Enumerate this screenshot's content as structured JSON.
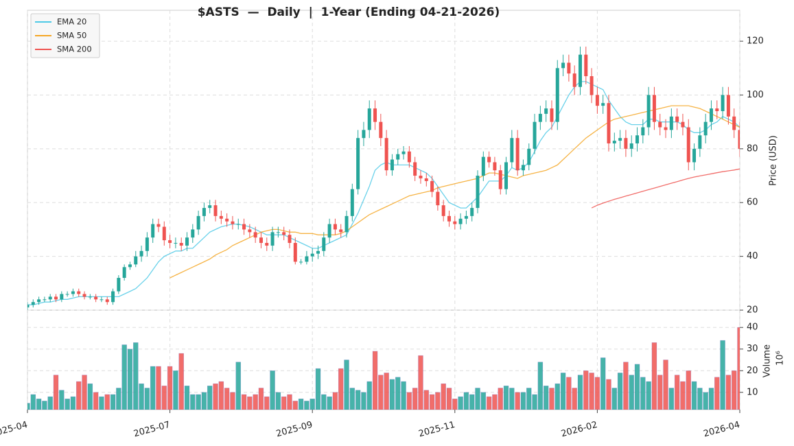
{
  "chart_data": {
    "type": "candlestick",
    "title": "$ASTS  —  Daily  |  1-Year (Ending 04-21-2026)",
    "ylabel": "Price (USD)",
    "y2label": "Volume",
    "y2unit": "10⁶",
    "xlim": [
      0,
      125
    ],
    "xticks": [
      {
        "value": 0,
        "label": "2025-04"
      },
      {
        "value": 25,
        "label": "2025-07"
      },
      {
        "value": 50,
        "label": "2025-09"
      },
      {
        "value": 75,
        "label": "2025-11"
      },
      {
        "value": 100,
        "label": "2026-02"
      },
      {
        "value": 125,
        "label": "2026-04"
      }
    ],
    "ylim": [
      20,
      131.5
    ],
    "yticks": [
      20,
      40,
      60,
      80,
      100,
      120
    ],
    "y2lim": [
      2,
      48
    ],
    "y2ticks": [
      10,
      20,
      30,
      40
    ],
    "grid": true,
    "legend": "upper left",
    "up_color": "#26a69a",
    "down_color": "#ef5350",
    "open": [
      21,
      22,
      23,
      24,
      24,
      25,
      24,
      26,
      26,
      27,
      26,
      25,
      25,
      24,
      24,
      23,
      27,
      32,
      36,
      37,
      40,
      42,
      47,
      52,
      51,
      46,
      45,
      45,
      44,
      47,
      50,
      55,
      58,
      59,
      55,
      54,
      53,
      52,
      52,
      50,
      49,
      47,
      45,
      44,
      49,
      49,
      48,
      45,
      38,
      38,
      40,
      41,
      42,
      47,
      52,
      50,
      49,
      55,
      65,
      84,
      87,
      95,
      90,
      84,
      72,
      76,
      78,
      79,
      75,
      70,
      69,
      68,
      64,
      59,
      55,
      53,
      52,
      54,
      55,
      58,
      70,
      77,
      75,
      72,
      65,
      75,
      84,
      72,
      74,
      80,
      90,
      93,
      95,
      90,
      110,
      112,
      108,
      103,
      115,
      107,
      100,
      96,
      97,
      82,
      83,
      84,
      80,
      82,
      85,
      88,
      100,
      90,
      88,
      87,
      92,
      90,
      88,
      75,
      80,
      85,
      90,
      95,
      94,
      100,
      92,
      87
    ],
    "high": [
      23,
      24,
      25,
      25,
      26,
      26,
      27,
      27,
      28,
      28,
      27,
      26,
      26,
      25,
      25,
      28,
      33,
      37,
      38,
      42,
      44,
      49,
      54,
      54,
      53,
      48,
      47,
      47,
      49,
      52,
      57,
      60,
      61,
      61,
      57,
      56,
      55,
      54,
      54,
      52,
      51,
      49,
      47,
      51,
      51,
      51,
      50,
      47,
      39,
      42,
      43,
      44,
      49,
      54,
      54,
      52,
      57,
      67,
      87,
      90,
      98,
      98,
      93,
      87,
      78,
      80,
      81,
      81,
      77,
      72,
      71,
      70,
      66,
      61,
      57,
      55,
      56,
      57,
      60,
      72,
      79,
      79,
      77,
      74,
      77,
      87,
      87,
      76,
      82,
      93,
      96,
      98,
      98,
      113,
      115,
      115,
      111,
      118,
      118,
      110,
      103,
      100,
      100,
      86,
      87,
      87,
      85,
      88,
      91,
      103,
      103,
      93,
      91,
      95,
      95,
      93,
      91,
      82,
      88,
      93,
      98,
      98,
      103,
      103,
      95,
      90
    ],
    "low": [
      20,
      21,
      22,
      23,
      23,
      23,
      23,
      25,
      25,
      25,
      24,
      24,
      23,
      23,
      22,
      22,
      26,
      31,
      35,
      36,
      38,
      40,
      45,
      49,
      44,
      43,
      43,
      42,
      42,
      45,
      48,
      53,
      56,
      53,
      52,
      51,
      50,
      50,
      48,
      47,
      45,
      43,
      42,
      42,
      47,
      46,
      43,
      37,
      37,
      37,
      38,
      39,
      40,
      45,
      48,
      47,
      47,
      53,
      63,
      81,
      84,
      87,
      81,
      70,
      70,
      74,
      76,
      73,
      68,
      67,
      66,
      62,
      57,
      53,
      51,
      50,
      50,
      52,
      53,
      56,
      68,
      73,
      70,
      63,
      63,
      73,
      70,
      70,
      72,
      78,
      87,
      90,
      87,
      87,
      107,
      105,
      100,
      100,
      104,
      97,
      93,
      93,
      79,
      79,
      80,
      77,
      77,
      79,
      82,
      85,
      87,
      85,
      84,
      84,
      87,
      85,
      72,
      72,
      77,
      82,
      87,
      91,
      91,
      89,
      84,
      77
    ],
    "close": [
      22,
      23,
      24,
      24,
      25,
      24,
      26,
      26,
      27,
      26,
      25,
      25,
      24,
      24,
      23,
      27,
      32,
      36,
      37,
      40,
      42,
      47,
      52,
      51,
      46,
      45,
      45,
      44,
      47,
      50,
      55,
      58,
      59,
      55,
      54,
      53,
      52,
      52,
      50,
      49,
      47,
      45,
      44,
      49,
      49,
      48,
      45,
      38,
      38,
      40,
      41,
      42,
      47,
      52,
      50,
      49,
      55,
      65,
      84,
      87,
      95,
      90,
      84,
      72,
      76,
      78,
      79,
      75,
      70,
      69,
      68,
      64,
      59,
      55,
      53,
      52,
      54,
      55,
      58,
      70,
      77,
      75,
      72,
      65,
      75,
      84,
      72,
      74,
      80,
      90,
      93,
      95,
      90,
      110,
      112,
      108,
      103,
      115,
      107,
      100,
      96,
      97,
      82,
      83,
      84,
      80,
      82,
      85,
      88,
      100,
      90,
      88,
      87,
      92,
      90,
      88,
      75,
      80,
      85,
      90,
      95,
      94,
      100,
      92,
      87,
      80
    ],
    "volume": [
      5,
      9,
      7,
      6,
      8,
      18,
      11,
      7,
      8,
      15,
      18,
      14,
      10,
      8,
      9,
      9,
      12,
      32,
      30,
      33,
      14,
      12,
      22,
      22,
      13,
      22,
      20,
      28,
      13,
      9,
      9,
      10,
      13,
      14,
      15,
      12,
      10,
      24,
      9,
      8,
      9,
      12,
      8,
      20,
      10,
      8,
      9,
      6,
      7,
      6,
      7,
      21,
      9,
      8,
      10,
      21,
      25,
      12,
      11,
      10,
      15,
      29,
      18,
      19,
      16,
      17,
      15,
      10,
      12,
      27,
      11,
      9,
      10,
      14,
      12,
      7,
      8,
      10,
      9,
      12,
      10,
      8,
      9,
      12,
      13,
      12,
      10,
      10,
      12,
      9,
      24,
      13,
      12,
      14,
      19,
      17,
      12,
      18,
      20,
      19,
      17,
      26,
      16,
      12,
      19,
      24,
      18,
      23,
      17,
      15,
      33,
      18,
      25,
      12,
      18,
      15,
      20,
      15,
      12,
      10,
      12,
      17,
      34,
      18,
      20,
      40
    ],
    "series": [
      {
        "name": "EMA 20",
        "color": "#4dc9e6",
        "values": [
          22,
          22,
          22.5,
          23,
          23,
          23.5,
          24,
          24,
          24.5,
          25,
          25,
          25,
          25,
          25,
          25,
          25,
          25,
          26,
          27,
          28,
          30,
          32,
          35,
          38,
          40,
          41,
          42,
          42,
          43,
          43,
          45,
          47,
          49,
          50,
          51,
          51.5,
          52,
          52,
          51.5,
          51,
          50,
          49,
          48,
          48,
          48,
          48,
          47,
          46,
          45,
          44,
          43,
          43,
          44,
          45,
          46,
          47,
          48,
          52,
          56,
          61,
          66,
          72,
          74,
          75,
          74,
          74,
          74,
          74,
          73,
          72,
          71,
          69,
          66,
          63,
          60,
          59,
          58,
          58,
          60,
          62,
          65,
          68,
          68,
          68,
          70,
          73,
          72,
          73,
          75,
          79,
          83,
          86,
          88,
          92,
          96,
          100,
          103,
          105,
          105,
          104,
          103,
          102,
          98,
          95,
          92,
          90,
          89,
          89,
          89,
          91,
          91,
          90,
          90,
          90,
          90,
          89,
          87,
          86,
          86,
          87,
          89,
          90,
          92,
          91,
          90,
          88
        ]
      },
      {
        "name": "SMA 50",
        "color": "#f5a623",
        "values": [
          null,
          null,
          null,
          null,
          null,
          null,
          null,
          null,
          null,
          null,
          null,
          null,
          null,
          null,
          null,
          null,
          null,
          null,
          null,
          null,
          null,
          null,
          null,
          null,
          null,
          32,
          33,
          34,
          35,
          36,
          37,
          38,
          39,
          40.5,
          41.5,
          42.5,
          44,
          45,
          46,
          47,
          48,
          49,
          49.5,
          50,
          50,
          49.5,
          49,
          49,
          48.5,
          48.5,
          48.5,
          48,
          48,
          48,
          48,
          48.5,
          49.5,
          51,
          52.5,
          54,
          55.5,
          56.5,
          57.5,
          58.5,
          59.5,
          60.5,
          61.5,
          62.5,
          63,
          63.5,
          64,
          64.5,
          65.5,
          66,
          66.5,
          67,
          67.5,
          68,
          68.5,
          69,
          70,
          71,
          71,
          70.5,
          70,
          69.5,
          69,
          70,
          70.5,
          71,
          71.5,
          72,
          73,
          74,
          76,
          78,
          80,
          82,
          84,
          85.5,
          87,
          88.5,
          90,
          91,
          91.5,
          92,
          92.5,
          93,
          93.5,
          94,
          94.5,
          95,
          95.5,
          96,
          96,
          96,
          96,
          95.5,
          95,
          94,
          93,
          92,
          91,
          90,
          89,
          88
        ]
      },
      {
        "name": "SMA 200",
        "color": "#ef5350",
        "values": [
          null,
          null,
          null,
          null,
          null,
          null,
          null,
          null,
          null,
          null,
          null,
          null,
          null,
          null,
          null,
          null,
          null,
          null,
          null,
          null,
          null,
          null,
          null,
          null,
          null,
          null,
          null,
          null,
          null,
          null,
          null,
          null,
          null,
          null,
          null,
          null,
          null,
          null,
          null,
          null,
          null,
          null,
          null,
          null,
          null,
          null,
          null,
          null,
          null,
          null,
          null,
          null,
          null,
          null,
          null,
          null,
          null,
          null,
          null,
          null,
          null,
          null,
          null,
          null,
          null,
          null,
          null,
          null,
          null,
          null,
          null,
          null,
          null,
          null,
          null,
          null,
          null,
          null,
          null,
          null,
          null,
          null,
          null,
          null,
          null,
          null,
          null,
          null,
          null,
          null,
          null,
          null,
          null,
          null,
          null,
          null,
          null,
          null,
          null,
          58,
          59,
          59.8,
          60.5,
          61.2,
          61.8,
          62.4,
          63,
          63.6,
          64.2,
          64.8,
          65.4,
          66,
          66.6,
          67.2,
          67.8,
          68.4,
          69,
          69.5,
          69.9,
          70.3,
          70.7,
          71.1,
          71.5,
          71.8,
          72.1,
          72.5
        ]
      }
    ]
  }
}
